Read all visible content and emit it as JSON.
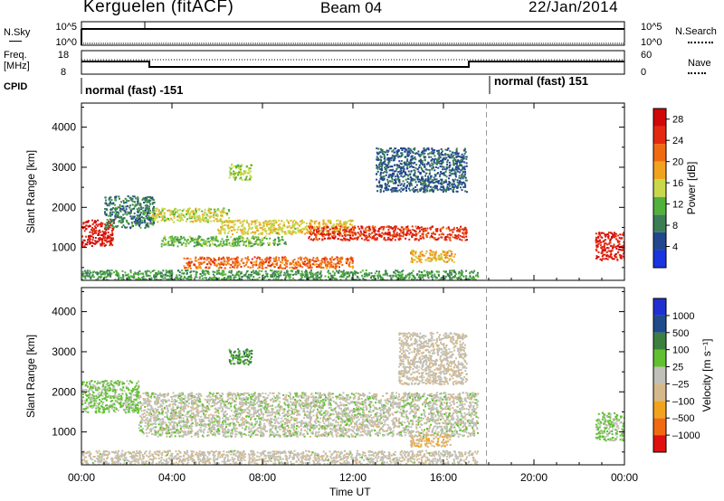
{
  "header": {
    "station": "Kerguelen (fitACF)",
    "beam": "Beam 04",
    "date": "22/Jan/2014"
  },
  "strip_sky": {
    "left_label": "N.Sky",
    "right_label": "N.Search",
    "left_ticks": [
      "10^5",
      "10^0"
    ],
    "right_ticks": [
      "10^5",
      "10^0"
    ]
  },
  "strip_freq": {
    "left_label_1": "Freq.",
    "left_label_2": "[MHz]",
    "right_label": "Nave",
    "left_ticks": [
      "18",
      "8"
    ],
    "right_ticks": [
      "60",
      "0"
    ]
  },
  "strip_cpid": {
    "label": "CPID",
    "segments": [
      {
        "text": "normal (fast) -151",
        "start_hour": 0,
        "end_hour": 17.9
      },
      {
        "text": "normal (fast) 151",
        "start_hour": 17.9,
        "end_hour": 24
      }
    ]
  },
  "x_axis": {
    "label": "Time UT",
    "ticks": [
      "00:00",
      "04:00",
      "08:00",
      "12:00",
      "16:00",
      "20:00",
      "00:00"
    ],
    "tick_hours": [
      0,
      4,
      8,
      12,
      16,
      20,
      24
    ]
  },
  "colors": {
    "power": [
      "#1a34e0",
      "#23478f",
      "#3b7e56",
      "#52b13a",
      "#c8d84a",
      "#f2a31d",
      "#f06a12",
      "#e32a10",
      "#d10808"
    ],
    "velocity": [
      "#e01010",
      "#f06a12",
      "#f2a31d",
      "#d6b98a",
      "#c0c0b8",
      "#60c030",
      "#3b8040",
      "#204a8a",
      "#2030d0"
    ]
  },
  "chart_data": [
    {
      "type": "heatmap",
      "ylabel": "Slant Range [km]",
      "xlabel": "Time UT",
      "xlim": [
        0,
        24
      ],
      "ylim": [
        180,
        4600
      ],
      "yticks": [
        "1000",
        "2000",
        "3000",
        "4000"
      ],
      "ytick_values": [
        1000,
        2000,
        3000,
        4000
      ],
      "colorbar": {
        "label": "Power [dB]",
        "ticks": [
          "4",
          "8",
          "12",
          "16",
          "20",
          "24",
          "28"
        ],
        "range": [
          0,
          30
        ]
      },
      "features": [
        {
          "t0": 0.0,
          "t1": 1.4,
          "r0": 1050,
          "r1": 1700,
          "value": 27
        },
        {
          "t0": 1.0,
          "t1": 3.2,
          "r0": 1500,
          "r1": 2300,
          "value": 8
        },
        {
          "t0": 3.0,
          "t1": 6.5,
          "r0": 1650,
          "r1": 2000,
          "value": 15
        },
        {
          "t0": 6.0,
          "t1": 12.0,
          "r0": 1350,
          "r1": 1700,
          "value": 16
        },
        {
          "t0": 10.0,
          "t1": 17.0,
          "r0": 1200,
          "r1": 1550,
          "value": 25
        },
        {
          "t0": 3.5,
          "t1": 9.0,
          "r0": 1050,
          "r1": 1300,
          "value": 12
        },
        {
          "t0": 4.5,
          "t1": 12.0,
          "r0": 500,
          "r1": 780,
          "value": 22
        },
        {
          "t0": 14.5,
          "t1": 16.5,
          "r0": 650,
          "r1": 950,
          "value": 18
        },
        {
          "t0": 0.0,
          "t1": 17.5,
          "r0": 200,
          "r1": 450,
          "value": 10
        },
        {
          "t0": 13.0,
          "t1": 17.0,
          "r0": 2400,
          "r1": 3500,
          "value": 6
        },
        {
          "t0": 6.5,
          "t1": 7.5,
          "r0": 2700,
          "r1": 3100,
          "value": 14
        },
        {
          "t0": 22.7,
          "t1": 24.0,
          "r0": 700,
          "r1": 1400,
          "value": 26
        }
      ]
    },
    {
      "type": "heatmap",
      "ylabel": "Slant Range [km]",
      "xlabel": "Time UT",
      "xlim": [
        0,
        24
      ],
      "ylim": [
        180,
        4600
      ],
      "yticks": [
        "1000",
        "2000",
        "3000",
        "4000"
      ],
      "ytick_values": [
        1000,
        2000,
        3000,
        4000
      ],
      "colorbar": {
        "label": "Velocity [m s⁻¹]",
        "ticks": [
          "1000",
          "500",
          "100",
          "25",
          "–25",
          "–100",
          "–500",
          "–1000"
        ],
        "range": [
          -1000,
          1000
        ]
      },
      "features": [
        {
          "t0": 0.0,
          "t1": 2.5,
          "r0": 1500,
          "r1": 2300,
          "value": 150
        },
        {
          "t0": 2.5,
          "t1": 17.5,
          "r0": 900,
          "r1": 2000,
          "value": 0
        },
        {
          "t0": 14.0,
          "t1": 17.0,
          "r0": 2200,
          "r1": 3500,
          "value": -80
        },
        {
          "t0": 14.5,
          "t1": 16.3,
          "r0": 650,
          "r1": 950,
          "value": -300
        },
        {
          "t0": 0.0,
          "t1": 17.5,
          "r0": 200,
          "r1": 550,
          "value": -60
        },
        {
          "t0": 6.5,
          "t1": 7.5,
          "r0": 2700,
          "r1": 3100,
          "value": 400
        },
        {
          "t0": 22.7,
          "t1": 24.0,
          "r0": 800,
          "r1": 1500,
          "value": 150
        }
      ]
    }
  ]
}
